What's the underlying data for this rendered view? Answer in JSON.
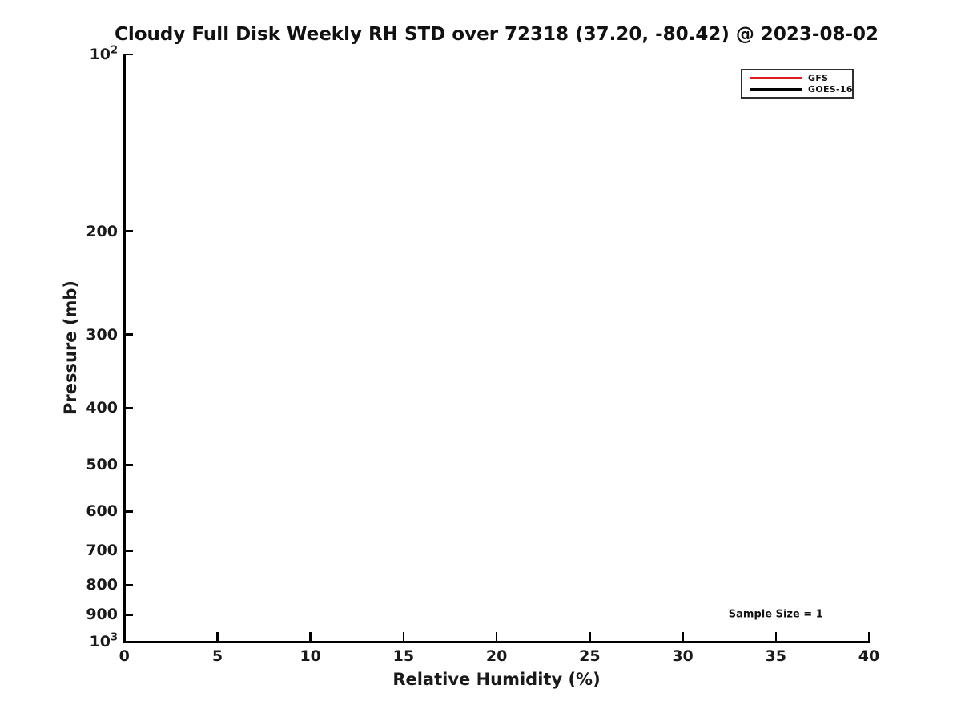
{
  "title": "Cloudy Full Disk Weekly RH STD over 72318 (37.20, -80.42) @ 2023-08-02",
  "annotation": {
    "label": "Sample Size = 1",
    "x": 35,
    "pressure_mb": 900
  },
  "legend": {
    "entries": [
      {
        "label": "GFS",
        "color": "#dc1e1e"
      },
      {
        "label": "GOES-16",
        "color": "#000000"
      }
    ]
  },
  "chart_data": {
    "type": "line",
    "title": "Cloudy Full Disk Weekly RH STD over 72318 (37.20, -80.42) @ 2023-08-02",
    "xlabel": "Relative Humidity (%)",
    "ylabel": "Pressure (mb)",
    "xlim": [
      0,
      40
    ],
    "xticks": [
      0,
      5,
      10,
      15,
      20,
      25,
      30,
      35,
      40
    ],
    "yscale": "log",
    "ylim": [
      100,
      1000
    ],
    "y_axis_direction": "pressure increases downward (100 mb at top, 1000 mb at bottom)",
    "yticks": [
      {
        "value": 100,
        "label": "10^2"
      },
      {
        "value": 200,
        "label": "200"
      },
      {
        "value": 300,
        "label": "300"
      },
      {
        "value": 400,
        "label": "400"
      },
      {
        "value": 500,
        "label": "500"
      },
      {
        "value": 600,
        "label": "600"
      },
      {
        "value": 700,
        "label": "700"
      },
      {
        "value": 800,
        "label": "800"
      },
      {
        "value": 900,
        "label": "900"
      },
      {
        "value": 1000,
        "label": "10^3"
      }
    ],
    "grid": false,
    "legend_position": "upper right",
    "series": [
      {
        "name": "GFS",
        "color": "#dc1e1e",
        "note": "RH STD = 0 at all levels; renders as vertical line on the y-axis at x=0",
        "x": [
          0,
          0
        ],
        "pressure": [
          100,
          970
        ]
      },
      {
        "name": "GOES-16",
        "color": "#000000",
        "note": "RH STD = 0 at all levels; renders as vertical line on the y-axis at x=0",
        "x": [
          0,
          0
        ],
        "pressure": [
          100,
          1000
        ]
      }
    ],
    "annotations": [
      {
        "text": "Sample Size = 1",
        "x": 35,
        "y": 900
      }
    ]
  }
}
